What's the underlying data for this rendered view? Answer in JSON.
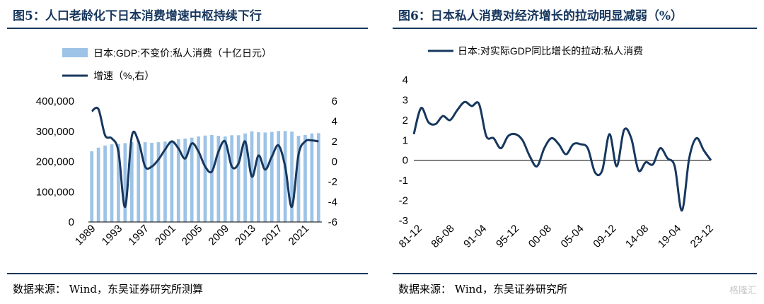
{
  "panels": [
    {
      "title": "图5：人口老龄化下日本消费增速中枢持续下行",
      "source": "数据来源：  Wind，东吴证券研究所测算"
    },
    {
      "title": "图6：日本私人消费对经济增长的拉动明显减弱（%）",
      "source": "数据来源：  Wind，东吴证券研究所"
    }
  ],
  "watermark": "格隆汇",
  "chart_data": [
    {
      "type": "bar+line",
      "title": "图5：人口老龄化下日本消费增速中枢持续下行",
      "x": [
        1989,
        1990,
        1991,
        1992,
        1993,
        1994,
        1995,
        1996,
        1997,
        1998,
        1999,
        2000,
        2001,
        2002,
        2003,
        2004,
        2005,
        2006,
        2007,
        2008,
        2009,
        2010,
        2011,
        2012,
        2013,
        2014,
        2015,
        2016,
        2017,
        2018,
        2019,
        2020,
        2021,
        2022,
        2023
      ],
      "x_ticks": [
        "1989",
        "1993",
        "1997",
        "2001",
        "2005",
        "2009",
        "2013",
        "2017",
        "2021"
      ],
      "series": [
        {
          "name": "日本:GDP:不变价:私人消费（十亿日元）",
          "kind": "bar",
          "axis": "left",
          "color": "#9dc3e6",
          "values": [
            234000,
            246000,
            253000,
            257000,
            258000,
            261000,
            264000,
            270000,
            264000,
            262000,
            264000,
            266000,
            270000,
            274000,
            276000,
            279000,
            283000,
            286000,
            288000,
            285000,
            283000,
            287000,
            287000,
            293000,
            300000,
            297000,
            296000,
            298000,
            301000,
            301000,
            299000,
            285000,
            288000,
            293000,
            294000
          ]
        },
        {
          "name": "增速（%,右）",
          "kind": "line",
          "axis": "right",
          "color": "#17375e",
          "values": [
            5.0,
            5.2,
            2.6,
            2.3,
            1.0,
            -4.5,
            2.5,
            2.0,
            -0.5,
            -0.5,
            0.2,
            1.2,
            2.0,
            1.3,
            0.3,
            1.8,
            1.0,
            -0.5,
            -1.0,
            1.0,
            2.0,
            -0.5,
            -0.2,
            2.0,
            -1.5,
            0.6,
            -0.8,
            0.5,
            1.6,
            -0.5,
            -4.5,
            0.7,
            2.0,
            2.1,
            2.0
          ]
        }
      ],
      "yleft_ticks": [
        "0",
        "100,000",
        "200,000",
        "300,000",
        "400,000"
      ],
      "yleft_range": [
        0,
        400000
      ],
      "yright_ticks": [
        "-6",
        "-4",
        "-2",
        "0",
        "2",
        "4",
        "6"
      ],
      "yright_range": [
        -6,
        6
      ],
      "legend": "top-left"
    },
    {
      "type": "line",
      "title": "图6：日本私人消费对经济增长的拉动明显减弱（%）",
      "x_ticks": [
        "81-12",
        "86-08",
        "91-04",
        "95-12",
        "00-08",
        "05-04",
        "09-12",
        "14-08",
        "19-04",
        "23-12"
      ],
      "y_ticks": [
        "-3",
        "-2",
        "-1",
        "0",
        "1",
        "2",
        "3",
        "4"
      ],
      "ylim": [
        -3,
        4
      ],
      "series": [
        {
          "name": "日本:对实际GDP同比增长的拉动:私人消费",
          "color": "#17375e",
          "values": [
            1.3,
            2.6,
            1.9,
            1.8,
            2.2,
            2.0,
            2.5,
            2.9,
            2.7,
            2.8,
            1.2,
            1.1,
            0.6,
            1.2,
            1.3,
            1.0,
            0.2,
            -0.3,
            0.6,
            1.1,
            0.8,
            0.3,
            0.8,
            0.8,
            0.6,
            -0.6,
            -0.5,
            1.3,
            -0.3,
            1.5,
            1.1,
            -0.5,
            -0.1,
            -0.2,
            0.6,
            0.1,
            -0.3,
            -2.5,
            0.1,
            1.1,
            0.5,
            0.0
          ]
        }
      ],
      "legend": "top-left"
    }
  ]
}
